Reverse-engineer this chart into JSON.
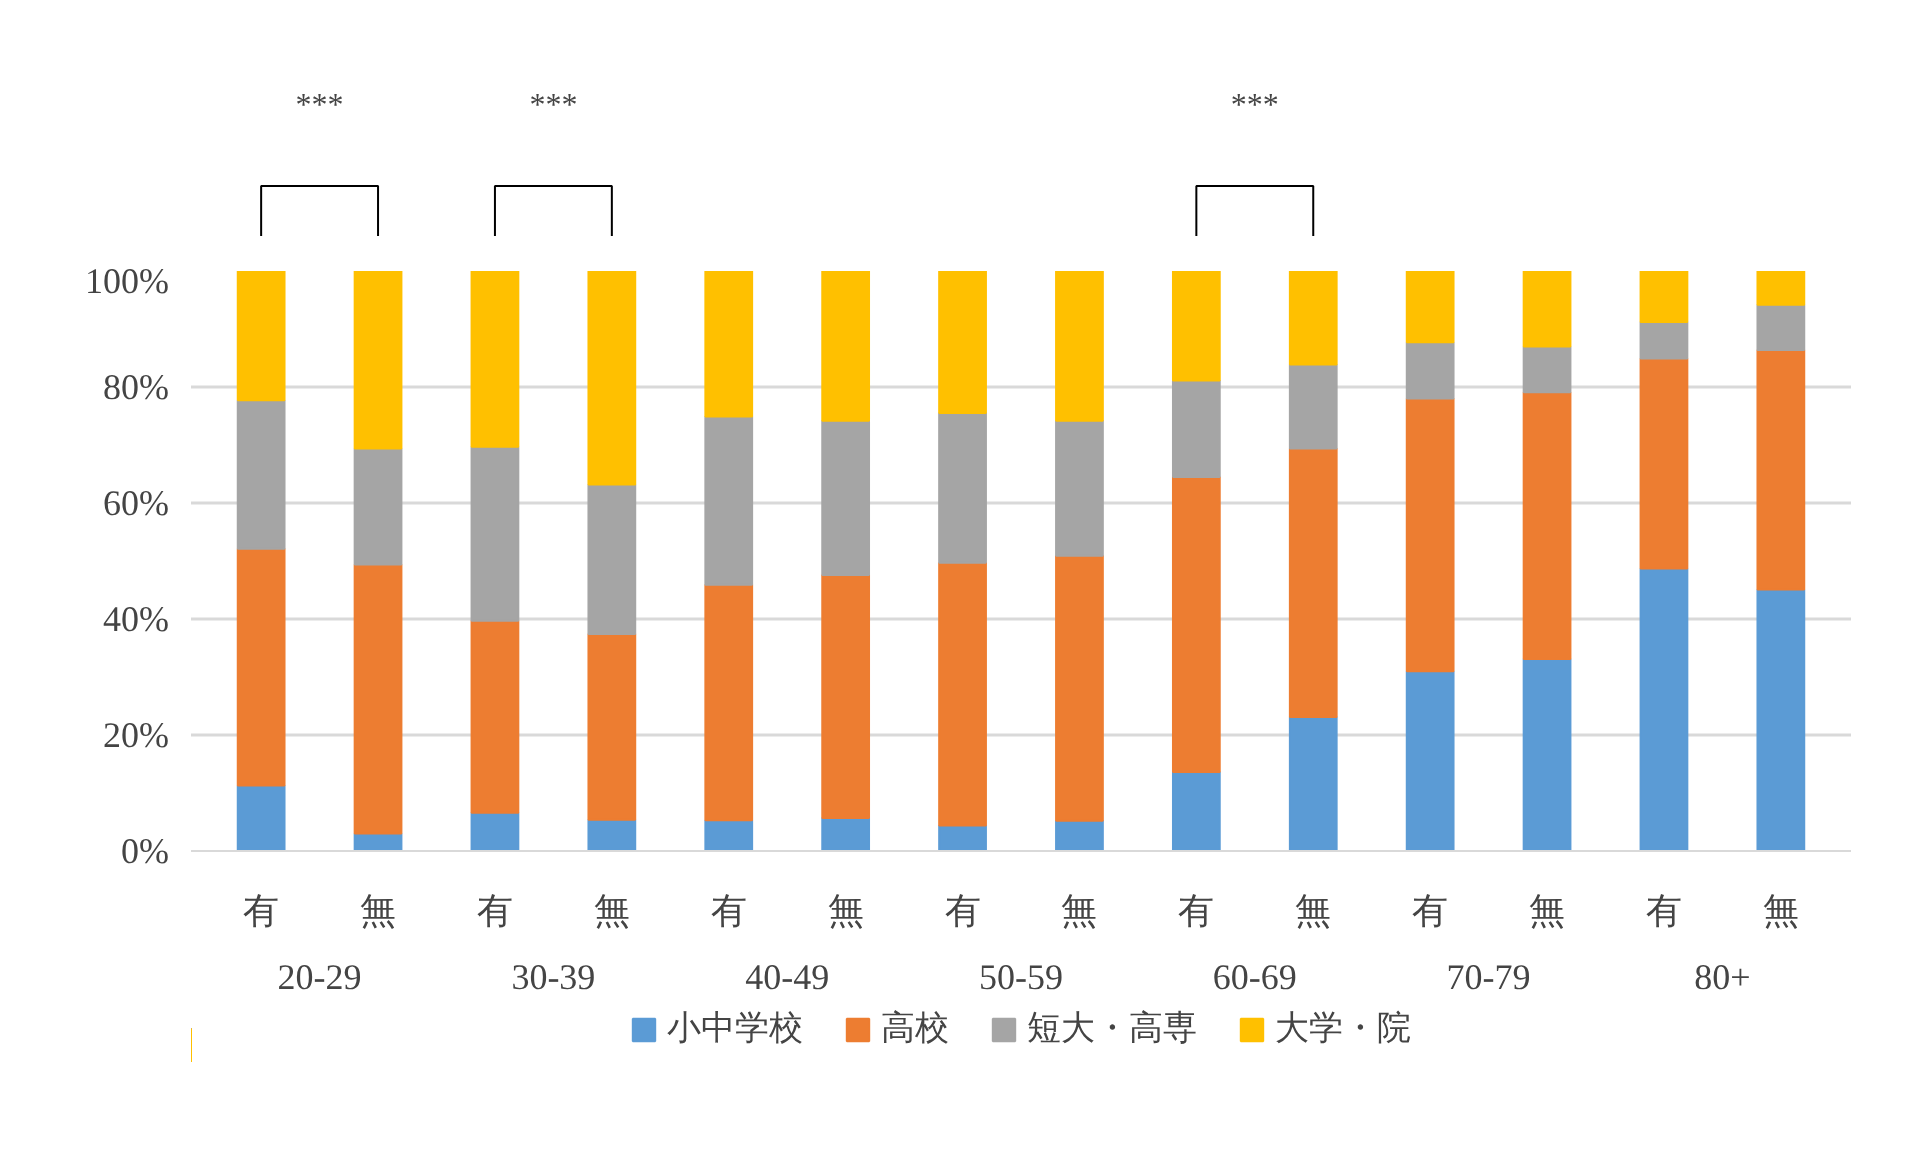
{
  "chart_data": {
    "type": "bar",
    "stacked": true,
    "categories": [
      "有",
      "無",
      "有",
      "無",
      "有",
      "無",
      "有",
      "無",
      "有",
      "無",
      "有",
      "無",
      "有",
      "無"
    ],
    "series": [
      {
        "name": "小中学校",
        "color": "#5b9bd5",
        "values": [
          11.3,
          3.0,
          6.6,
          5.4,
          5.3,
          5.7,
          4.4,
          5.2,
          13.6,
          23.1,
          31.0,
          33.1,
          48.7,
          45.1
        ]
      },
      {
        "name": "高校",
        "color": "#ed7d31",
        "values": [
          40.8,
          46.4,
          33.1,
          32.0,
          40.6,
          41.9,
          45.3,
          45.7,
          50.9,
          46.3,
          47.0,
          46.0,
          36.2,
          41.3
        ]
      },
      {
        "name": "短大・高専",
        "color": "#a5a5a5",
        "values": [
          25.6,
          20.0,
          30.0,
          25.8,
          29.0,
          26.6,
          25.8,
          23.3,
          16.6,
          14.5,
          9.7,
          7.9,
          6.3,
          7.8
        ]
      },
      {
        "name": "大学・院",
        "color": "#ffc000",
        "values": [
          22.3,
          30.6,
          30.3,
          36.8,
          25.1,
          25.8,
          24.5,
          25.8,
          18.9,
          16.1,
          12.3,
          13.0,
          8.8,
          5.8
        ]
      }
    ],
    "ylim": [
      0,
      100
    ],
    "yticks": [
      {
        "value": 0,
        "label": "0%"
      },
      {
        "value": 20,
        "label": "20%"
      },
      {
        "value": 40,
        "label": "40%"
      },
      {
        "value": 60,
        "label": "60%"
      },
      {
        "value": 80,
        "label": "80%"
      },
      {
        "value": 100,
        "label": "100%"
      }
    ],
    "grid": "y",
    "legend": "bottom",
    "annotations": [
      "20-29",
      "30-39",
      "40-49",
      "50-59",
      "60-69",
      "70-79",
      "80+",
      "***",
      "***",
      "***"
    ]
  }
}
